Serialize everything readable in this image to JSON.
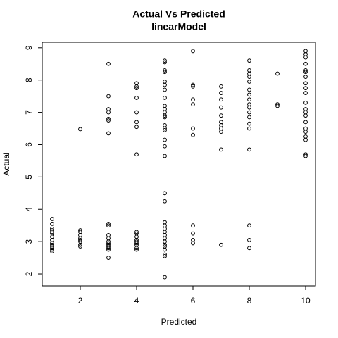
{
  "chart_data": {
    "type": "scatter",
    "title": "Actual Vs Predicted",
    "subtitle": "linearModel",
    "x_label": "Predicted",
    "y_label": "Actual",
    "color": "#000000",
    "xlim": [
      0.65,
      10.35
    ],
    "ylim": [
      1.63,
      9.17
    ],
    "xticks": [
      2,
      4,
      6,
      8,
      10
    ],
    "yticks": [
      2,
      3,
      4,
      5,
      6,
      7,
      8,
      9
    ],
    "grid": false,
    "x": [
      1,
      1,
      1,
      1,
      1,
      1,
      1,
      1,
      1,
      1,
      1,
      1,
      1,
      1,
      2,
      2,
      2,
      2,
      2,
      2,
      2,
      2,
      2,
      3,
      3,
      3,
      3,
      3,
      3,
      3,
      3,
      3,
      3,
      3,
      3,
      3,
      3,
      3,
      3,
      3,
      3,
      4,
      4,
      4,
      4,
      4,
      4,
      4,
      4,
      4,
      4,
      4,
      4,
      4,
      4,
      4,
      4,
      4,
      5,
      5,
      5,
      5,
      5,
      5,
      5,
      5,
      5,
      5,
      5,
      5,
      5,
      5,
      5,
      5,
      5,
      5,
      5,
      5,
      5,
      5,
      5,
      5,
      5,
      5,
      5,
      5,
      5,
      5,
      5,
      5,
      5,
      5,
      6,
      6,
      6,
      6,
      6,
      6,
      6,
      6,
      6,
      6,
      6,
      7,
      7,
      7,
      7,
      7,
      7,
      7,
      7,
      7,
      7,
      7,
      8,
      8,
      8,
      8,
      8,
      8,
      8,
      8,
      8,
      8,
      8,
      8,
      8,
      8,
      8,
      8,
      8,
      8,
      9,
      9,
      9,
      10,
      10,
      10,
      10,
      10,
      10,
      10,
      10,
      10,
      10,
      10,
      10,
      10,
      10,
      10,
      10,
      10,
      10,
      10,
      10,
      10
    ],
    "y": [
      3.7,
      3.55,
      3.4,
      3.35,
      3.3,
      3.25,
      3.15,
      3.05,
      2.95,
      2.9,
      2.85,
      2.8,
      2.75,
      2.7,
      6.48,
      3.35,
      3.3,
      3.2,
      3.1,
      3.05,
      3.0,
      2.9,
      2.85,
      8.5,
      7.5,
      7.1,
      7.0,
      6.8,
      6.75,
      6.35,
      3.55,
      3.5,
      3.2,
      3.1,
      3.0,
      2.95,
      2.9,
      2.85,
      2.8,
      2.75,
      2.5,
      7.9,
      7.8,
      7.75,
      7.45,
      7.0,
      6.7,
      6.55,
      5.7,
      3.3,
      3.25,
      3.15,
      3.05,
      3.0,
      2.95,
      2.9,
      2.8,
      2.75,
      8.6,
      8.55,
      8.3,
      8.25,
      7.95,
      7.85,
      7.7,
      7.45,
      7.2,
      7.1,
      7.0,
      6.9,
      6.85,
      6.6,
      6.5,
      6.45,
      6.15,
      5.95,
      5.65,
      4.5,
      4.25,
      3.6,
      3.5,
      3.4,
      3.3,
      3.2,
      3.1,
      3.0,
      2.9,
      2.85,
      2.75,
      2.6,
      2.55,
      1.9,
      8.9,
      7.85,
      7.8,
      7.4,
      7.25,
      6.5,
      6.3,
      3.5,
      3.25,
      3.05,
      2.95,
      7.8,
      7.6,
      7.4,
      7.15,
      6.9,
      6.7,
      6.6,
      6.5,
      6.4,
      5.85,
      2.9,
      8.6,
      8.3,
      8.2,
      8.1,
      7.95,
      7.7,
      7.55,
      7.4,
      7.25,
      7.15,
      7.0,
      6.85,
      6.65,
      6.5,
      5.85,
      3.5,
      3.05,
      2.8,
      8.2,
      7.25,
      7.2,
      8.9,
      8.8,
      8.7,
      8.5,
      8.3,
      8.25,
      8.1,
      7.9,
      7.75,
      7.6,
      7.3,
      7.1,
      7.0,
      6.9,
      6.7,
      6.5,
      6.4,
      6.25,
      6.15,
      5.7,
      5.65
    ]
  }
}
